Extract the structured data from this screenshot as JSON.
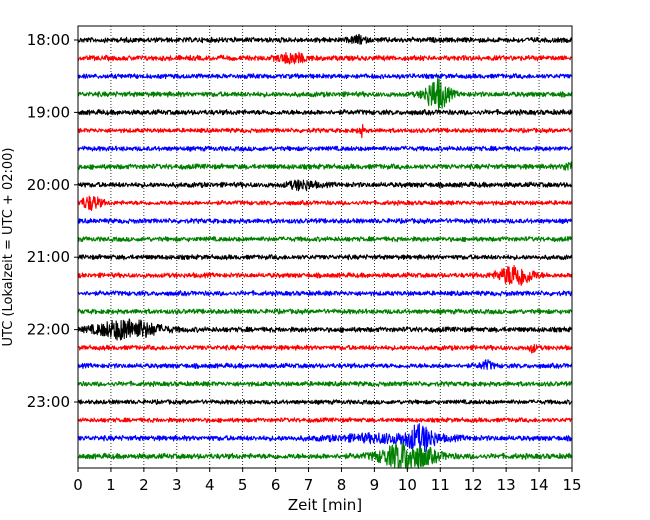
{
  "chart_data": {
    "type": "line",
    "xlabel": "Zeit  [min]",
    "ylabel": "UTC (Lokalzeit = UTC + 02:00)",
    "xlim": [
      0,
      15
    ],
    "x_ticks": [
      "0",
      "1",
      "2",
      "3",
      "4",
      "5",
      "6",
      "7",
      "8",
      "9",
      "10",
      "11",
      "12",
      "13",
      "14",
      "15"
    ],
    "y_tick_labels": [
      "18:00",
      "19:00",
      "20:00",
      "21:00",
      "22:00",
      "23:00"
    ],
    "grid": "vertical dotted",
    "trace_colors": [
      "#000000",
      "#ff0000",
      "#0000ff",
      "#008000"
    ],
    "traces": [
      {
        "start": "18:00",
        "color": "#000000",
        "amp": 0.28,
        "events": [
          {
            "t": 8.5,
            "a": 0.45,
            "w": 0.2
          }
        ]
      },
      {
        "start": "18:15",
        "color": "#ff0000",
        "amp": 0.28,
        "events": [
          {
            "t": 6.5,
            "a": 0.6,
            "w": 0.4
          }
        ]
      },
      {
        "start": "18:30",
        "color": "#0000ff",
        "amp": 0.26,
        "events": []
      },
      {
        "start": "18:45",
        "color": "#008000",
        "amp": 0.28,
        "events": [
          {
            "t": 10.9,
            "a": 1.9,
            "w": 0.35
          }
        ]
      },
      {
        "start": "19:00",
        "color": "#000000",
        "amp": 0.28,
        "events": []
      },
      {
        "start": "19:15",
        "color": "#ff0000",
        "amp": 0.24,
        "events": [
          {
            "t": 8.6,
            "a": 0.7,
            "w": 0.08
          }
        ]
      },
      {
        "start": "19:30",
        "color": "#0000ff",
        "amp": 0.26,
        "events": []
      },
      {
        "start": "19:45",
        "color": "#008000",
        "amp": 0.28,
        "events": [
          {
            "t": 14.9,
            "a": 0.5,
            "w": 0.15
          }
        ]
      },
      {
        "start": "20:00",
        "color": "#000000",
        "amp": 0.28,
        "events": [
          {
            "t": 6.8,
            "a": 0.5,
            "w": 0.4
          }
        ]
      },
      {
        "start": "20:15",
        "color": "#ff0000",
        "amp": 0.24,
        "events": [
          {
            "t": 0.4,
            "a": 0.8,
            "w": 0.3
          }
        ]
      },
      {
        "start": "20:30",
        "color": "#0000ff",
        "amp": 0.26,
        "events": []
      },
      {
        "start": "20:45",
        "color": "#008000",
        "amp": 0.26,
        "events": []
      },
      {
        "start": "21:00",
        "color": "#000000",
        "amp": 0.26,
        "events": []
      },
      {
        "start": "21:15",
        "color": "#ff0000",
        "amp": 0.26,
        "events": [
          {
            "t": 13.3,
            "a": 1.3,
            "w": 0.5
          }
        ]
      },
      {
        "start": "21:30",
        "color": "#0000ff",
        "amp": 0.26,
        "events": []
      },
      {
        "start": "21:45",
        "color": "#008000",
        "amp": 0.26,
        "events": []
      },
      {
        "start": "22:00",
        "color": "#000000",
        "amp": 0.28,
        "events": [
          {
            "t": 1.5,
            "a": 1.2,
            "w": 0.9
          }
        ]
      },
      {
        "start": "22:15",
        "color": "#ff0000",
        "amp": 0.26,
        "events": [
          {
            "t": 13.8,
            "a": 0.5,
            "w": 0.1
          }
        ]
      },
      {
        "start": "22:30",
        "color": "#0000ff",
        "amp": 0.26,
        "events": [
          {
            "t": 12.4,
            "a": 0.5,
            "w": 0.2
          }
        ]
      },
      {
        "start": "22:45",
        "color": "#008000",
        "amp": 0.26,
        "events": []
      },
      {
        "start": "23:00",
        "color": "#000000",
        "amp": 0.24,
        "events": []
      },
      {
        "start": "23:15",
        "color": "#ff0000",
        "amp": 0.24,
        "events": []
      },
      {
        "start": "23:30",
        "color": "#0000ff",
        "amp": 0.28,
        "events": [
          {
            "t": 10.4,
            "a": 1.3,
            "w": 0.4
          },
          {
            "t": 9.5,
            "a": 0.45,
            "w": 1.6
          }
        ]
      },
      {
        "start": "23:45",
        "color": "#008000",
        "amp": 0.3,
        "events": [
          {
            "t": 10.0,
            "a": 1.6,
            "w": 0.8
          }
        ]
      }
    ]
  }
}
